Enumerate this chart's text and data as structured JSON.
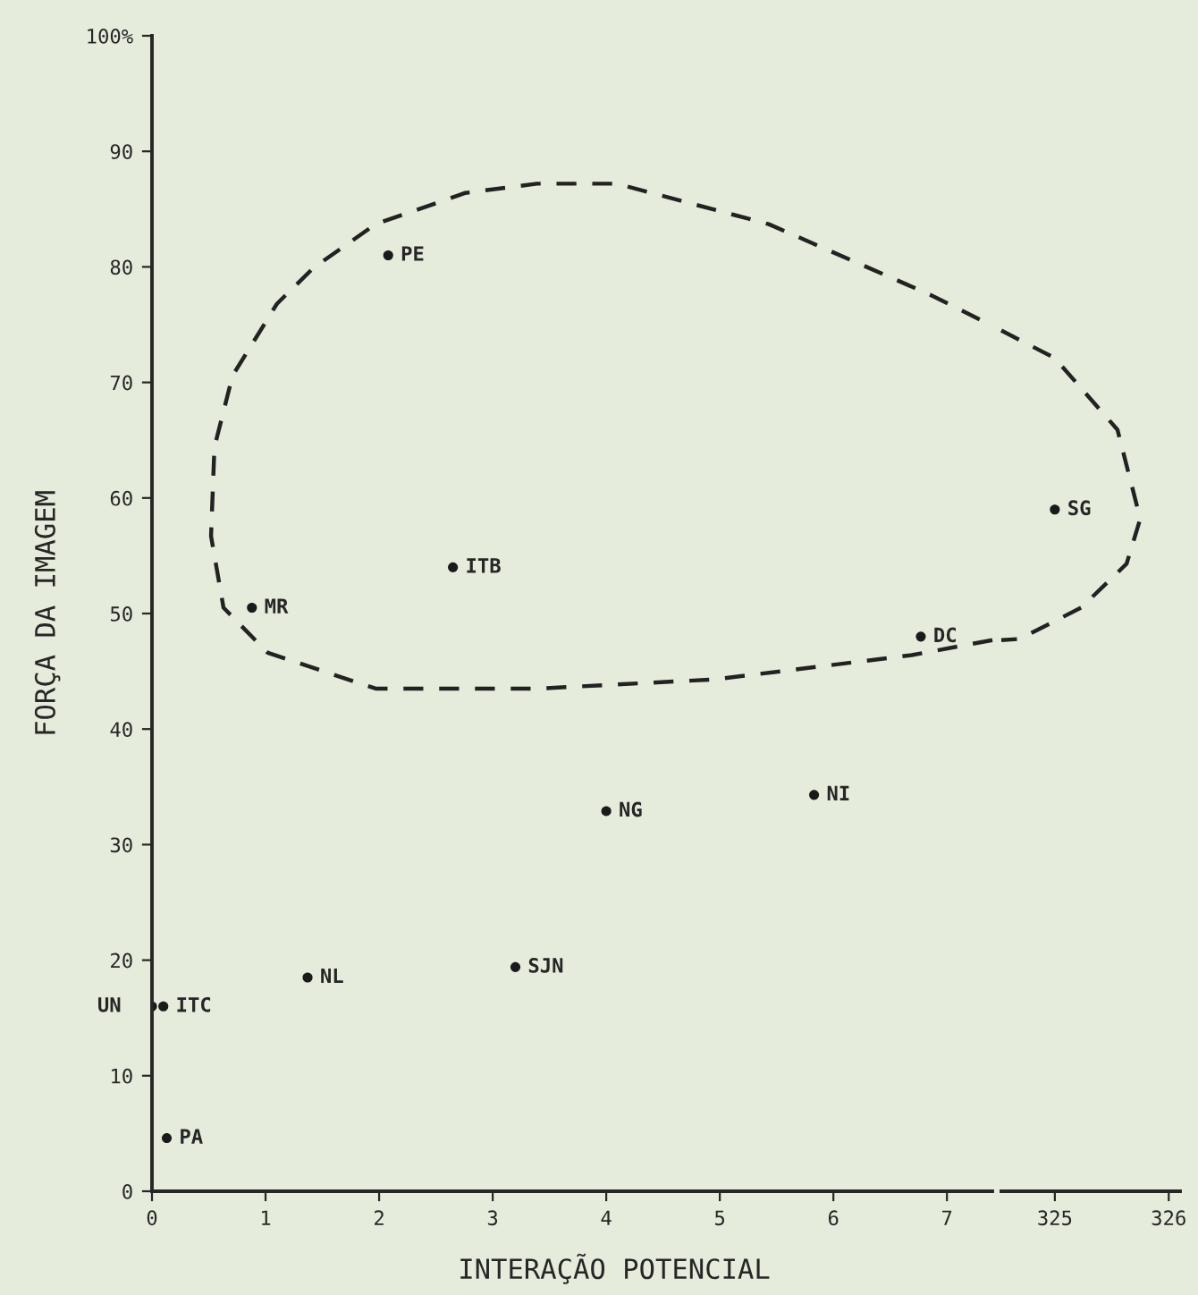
{
  "chart_data": [
    {
      "type": "scatter",
      "xlabel": "INTERAÇÃO POTENCIAL",
      "ylabel": "FORÇA DA IMAGEM",
      "xlim": [
        0,
        7.4
      ],
      "ylim": [
        0,
        100
      ],
      "xticks": [
        0,
        1,
        2,
        3,
        4,
        5,
        6,
        7
      ],
      "yticks": [
        0,
        10,
        20,
        30,
        40,
        50,
        60,
        70,
        80,
        90,
        {
          "value": 100,
          "label": "100%"
        }
      ],
      "grid": false,
      "series": [
        {
          "marker": "circle",
          "color": "#1a1a1a",
          "x": [
            2.08,
            2.65,
            0.88,
            6.77,
            5.83,
            4.0,
            3.2,
            1.37,
            0.0,
            0.1,
            0.13
          ],
          "values": [
            81,
            54,
            50.5,
            48,
            34.3,
            32.9,
            19.4,
            18.5,
            16,
            16,
            4.6
          ]
        },
        {
          "type": "line",
          "marker": "none",
          "line_style": "dashed",
          "color": "#222222",
          "x": [
            7.4,
            6.69,
            4.96,
            3.39,
            1.97,
            1.02,
            0.63,
            0.52,
            0.55,
            0.71,
            1.1,
            1.42,
            1.97,
            2.76,
            3.39,
            4.09,
            5.43,
            6.85,
            7.4
          ],
          "values": [
            47.7,
            46.4,
            44.3,
            43.5,
            43.5,
            46.6,
            50.5,
            56.7,
            64.4,
            70.6,
            76.8,
            79.9,
            83.7,
            86.4,
            87.2,
            87.2,
            83.7,
            77.6,
            74.9
          ]
        }
      ],
      "annotations": [
        {
          "text": "PE",
          "x": 2.08,
          "y": 81
        },
        {
          "text": "ITB",
          "x": 2.65,
          "y": 54
        },
        {
          "text": "MR",
          "x": 0.88,
          "y": 50.5
        },
        {
          "text": "DC",
          "x": 6.77,
          "y": 48
        },
        {
          "text": "NI",
          "x": 5.83,
          "y": 34.3
        },
        {
          "text": "NG",
          "x": 4.0,
          "y": 32.9
        },
        {
          "text": "SJN",
          "x": 3.2,
          "y": 19.4
        },
        {
          "text": "NL",
          "x": 1.37,
          "y": 18.5
        },
        {
          "text": "UN",
          "x": 0.0,
          "y": 16
        },
        {
          "text": "ITC",
          "x": 0.1,
          "y": 16
        },
        {
          "text": "PA",
          "x": 0.13,
          "y": 4.6
        }
      ]
    },
    {
      "type": "scatter",
      "xlim": [
        324.53,
        326.1
      ],
      "ylim": [
        0,
        100
      ],
      "xticks": [
        325,
        326
      ],
      "tick_labels": "x",
      "grid": false,
      "series": [
        {
          "marker": "circle",
          "color": "#1a1a1a",
          "x": [
            325
          ],
          "values": [
            59
          ]
        },
        {
          "type": "line",
          "marker": "none",
          "line_style": "dashed",
          "color": "#222222",
          "x": [
            324.53,
            325.0,
            325.55,
            325.75,
            325.63,
            325.23,
            324.69,
            324.53
          ],
          "values": [
            74.5,
            72.1,
            65.9,
            58.2,
            54.3,
            50.5,
            47.8,
            47.7
          ]
        }
      ],
      "annotations": [
        {
          "text": "SG",
          "x": 325,
          "y": 59
        }
      ]
    }
  ]
}
